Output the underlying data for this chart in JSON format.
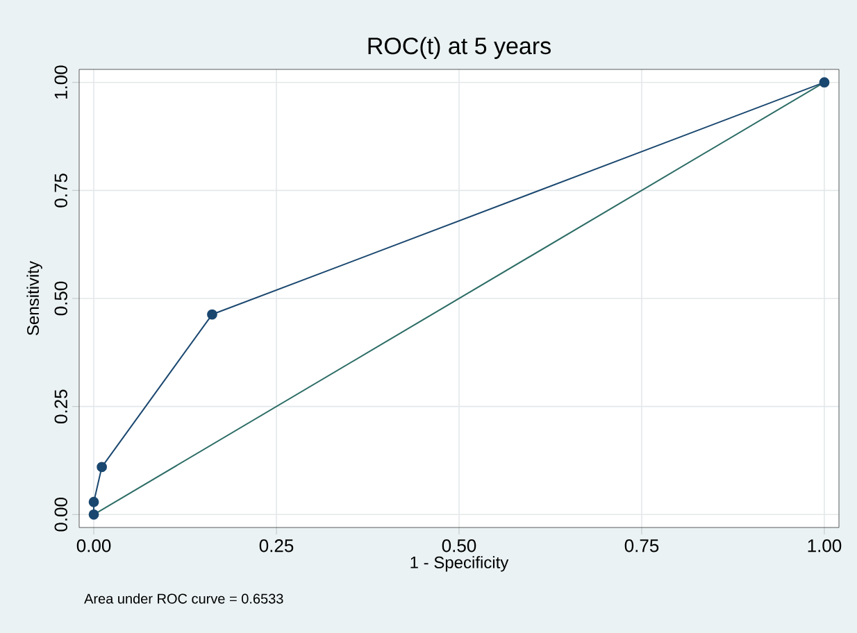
{
  "chart_data": {
    "type": "line",
    "title": "ROC(t) at 5 years",
    "xlabel": "1 - Specificity",
    "ylabel": "Sensitivity",
    "series": [
      {
        "color": "#1a476f",
        "marker": "circle",
        "x": [
          0,
          0,
          0.011,
          0.162,
          1
        ],
        "values": [
          0,
          0.029,
          0.11,
          0.463,
          1
        ]
      },
      {
        "color": "#2d6d66",
        "marker": "none",
        "x": [
          0,
          1
        ],
        "values": [
          0,
          1
        ]
      }
    ],
    "xlim": [
      -0.02,
      1.02
    ],
    "ylim": [
      -0.03,
      1.03
    ],
    "xticks": [
      {
        "value": 0,
        "label": "0.00"
      },
      {
        "value": 0.25,
        "label": "0.25"
      },
      {
        "value": 0.5,
        "label": "0.50"
      },
      {
        "value": 0.75,
        "label": "0.75"
      },
      {
        "value": 1,
        "label": "1.00"
      }
    ],
    "yticks": [
      {
        "value": 0,
        "label": "0.00"
      },
      {
        "value": 0.25,
        "label": "0.25"
      },
      {
        "value": 0.5,
        "label": "0.50"
      },
      {
        "value": 0.75,
        "label": "0.75"
      },
      {
        "value": 1,
        "label": "1.00"
      }
    ],
    "grid": true,
    "annotations": [
      "Area under ROC curve = 0.6533"
    ]
  }
}
